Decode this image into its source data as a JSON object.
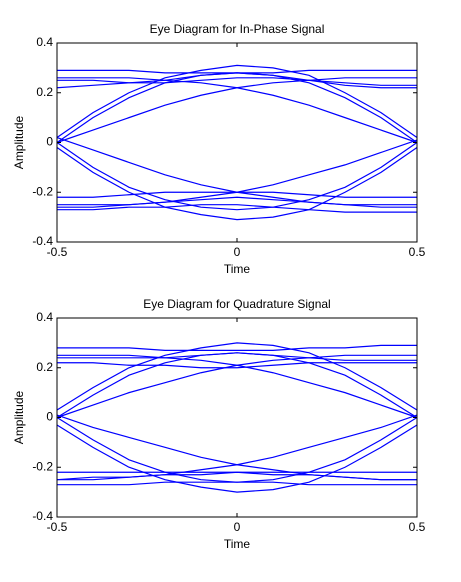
{
  "chart_data": [
    {
      "type": "line",
      "title": "Eye Diagram for In-Phase Signal",
      "xlabel": "Time",
      "ylabel": "Amplitude",
      "color": "#0000ff",
      "xlim": [
        -0.5,
        0.5
      ],
      "xticks": [
        -0.5,
        0,
        0.5
      ],
      "ylim": [
        -0.4,
        0.4
      ],
      "yticks": [
        -0.4,
        -0.2,
        0,
        0.2,
        0.4
      ],
      "x": [
        -0.5,
        -0.4,
        -0.3,
        -0.2,
        -0.1,
        0,
        0.1,
        0.2,
        0.3,
        0.4,
        0.5
      ],
      "series": [
        {
          "values": [
            0.02,
            0.12,
            0.2,
            0.26,
            0.29,
            0.31,
            0.3,
            0.27,
            0.2,
            0.12,
            0.02
          ]
        },
        {
          "values": [
            0.0,
            0.1,
            0.18,
            0.24,
            0.27,
            0.28,
            0.27,
            0.24,
            0.18,
            0.1,
            0.0
          ]
        },
        {
          "values": [
            -0.02,
            -0.12,
            -0.2,
            -0.26,
            -0.29,
            -0.31,
            -0.3,
            -0.27,
            -0.2,
            -0.12,
            -0.02
          ]
        },
        {
          "values": [
            0.0,
            -0.1,
            -0.18,
            -0.23,
            -0.26,
            -0.27,
            -0.26,
            -0.23,
            -0.18,
            -0.1,
            0.0
          ]
        },
        {
          "values": [
            0.29,
            0.29,
            0.29,
            0.28,
            0.28,
            0.28,
            0.28,
            0.29,
            0.29,
            0.29,
            0.29
          ]
        },
        {
          "values": [
            0.25,
            0.25,
            0.24,
            0.24,
            0.25,
            0.26,
            0.26,
            0.25,
            0.24,
            0.23,
            0.23
          ]
        },
        {
          "values": [
            0.22,
            0.23,
            0.24,
            0.25,
            0.27,
            0.28,
            0.27,
            0.25,
            0.23,
            0.22,
            0.22
          ]
        },
        {
          "values": [
            -0.27,
            -0.27,
            -0.26,
            -0.26,
            -0.25,
            -0.25,
            -0.26,
            -0.27,
            -0.28,
            -0.28,
            -0.28
          ]
        },
        {
          "values": [
            -0.22,
            -0.22,
            -0.21,
            -0.2,
            -0.2,
            -0.2,
            -0.2,
            -0.21,
            -0.22,
            -0.22,
            -0.22
          ]
        },
        {
          "values": [
            -0.25,
            -0.25,
            -0.25,
            -0.24,
            -0.23,
            -0.22,
            -0.23,
            -0.24,
            -0.25,
            -0.25,
            -0.25
          ]
        },
        {
          "values": [
            0.26,
            0.26,
            0.26,
            0.25,
            0.24,
            0.22,
            0.19,
            0.15,
            0.1,
            0.05,
            0.0
          ]
        },
        {
          "values": [
            0.0,
            0.05,
            0.1,
            0.15,
            0.19,
            0.22,
            0.24,
            0.25,
            0.26,
            0.26,
            0.26
          ]
        },
        {
          "values": [
            -0.26,
            -0.26,
            -0.25,
            -0.24,
            -0.22,
            -0.2,
            -0.17,
            -0.13,
            -0.09,
            -0.04,
            0.01
          ]
        },
        {
          "values": [
            0.02,
            -0.03,
            -0.08,
            -0.13,
            -0.17,
            -0.2,
            -0.22,
            -0.24,
            -0.25,
            -0.26,
            -0.26
          ]
        }
      ]
    },
    {
      "type": "line",
      "title": "Eye Diagram for Quadrature Signal",
      "xlabel": "Time",
      "ylabel": "Amplitude",
      "color": "#0000ff",
      "xlim": [
        -0.5,
        0.5
      ],
      "xticks": [
        -0.5,
        0,
        0.5
      ],
      "ylim": [
        -0.4,
        0.4
      ],
      "yticks": [
        -0.4,
        -0.2,
        0,
        0.2,
        0.4
      ],
      "x": [
        -0.5,
        -0.4,
        -0.3,
        -0.2,
        -0.1,
        0,
        0.1,
        0.2,
        0.3,
        0.4,
        0.5
      ],
      "series": [
        {
          "values": [
            0.03,
            0.12,
            0.2,
            0.25,
            0.28,
            0.3,
            0.29,
            0.26,
            0.2,
            0.12,
            0.03
          ]
        },
        {
          "values": [
            0.0,
            0.09,
            0.17,
            0.22,
            0.25,
            0.26,
            0.25,
            0.22,
            0.17,
            0.09,
            0.0
          ]
        },
        {
          "values": [
            -0.03,
            -0.12,
            -0.2,
            -0.25,
            -0.28,
            -0.3,
            -0.29,
            -0.26,
            -0.2,
            -0.12,
            -0.03
          ]
        },
        {
          "values": [
            0.0,
            -0.09,
            -0.17,
            -0.22,
            -0.25,
            -0.26,
            -0.25,
            -0.22,
            -0.17,
            -0.09,
            0.0
          ]
        },
        {
          "values": [
            0.28,
            0.28,
            0.28,
            0.27,
            0.27,
            0.27,
            0.27,
            0.28,
            0.28,
            0.29,
            0.29
          ]
        },
        {
          "values": [
            0.24,
            0.24,
            0.24,
            0.24,
            0.25,
            0.26,
            0.25,
            0.24,
            0.23,
            0.23,
            0.23
          ]
        },
        {
          "values": [
            0.22,
            0.22,
            0.21,
            0.21,
            0.2,
            0.2,
            0.21,
            0.22,
            0.22,
            0.22,
            0.22
          ]
        },
        {
          "values": [
            -0.27,
            -0.27,
            -0.27,
            -0.26,
            -0.26,
            -0.26,
            -0.26,
            -0.27,
            -0.27,
            -0.27,
            -0.27
          ]
        },
        {
          "values": [
            -0.22,
            -0.22,
            -0.22,
            -0.22,
            -0.22,
            -0.22,
            -0.22,
            -0.22,
            -0.22,
            -0.22,
            -0.22
          ]
        },
        {
          "values": [
            -0.25,
            -0.24,
            -0.24,
            -0.23,
            -0.23,
            -0.22,
            -0.23,
            -0.23,
            -0.24,
            -0.25,
            -0.25
          ]
        },
        {
          "values": [
            0.25,
            0.25,
            0.25,
            0.24,
            0.23,
            0.21,
            0.18,
            0.14,
            0.1,
            0.05,
            0.0
          ]
        },
        {
          "values": [
            0.0,
            0.05,
            0.1,
            0.14,
            0.18,
            0.21,
            0.23,
            0.24,
            0.25,
            0.25,
            0.25
          ]
        },
        {
          "values": [
            -0.25,
            -0.25,
            -0.24,
            -0.23,
            -0.21,
            -0.19,
            -0.16,
            -0.12,
            -0.08,
            -0.04,
            0.01
          ]
        },
        {
          "values": [
            0.01,
            -0.04,
            -0.08,
            -0.12,
            -0.16,
            -0.19,
            -0.21,
            -0.23,
            -0.24,
            -0.25,
            -0.25
          ]
        }
      ]
    }
  ]
}
